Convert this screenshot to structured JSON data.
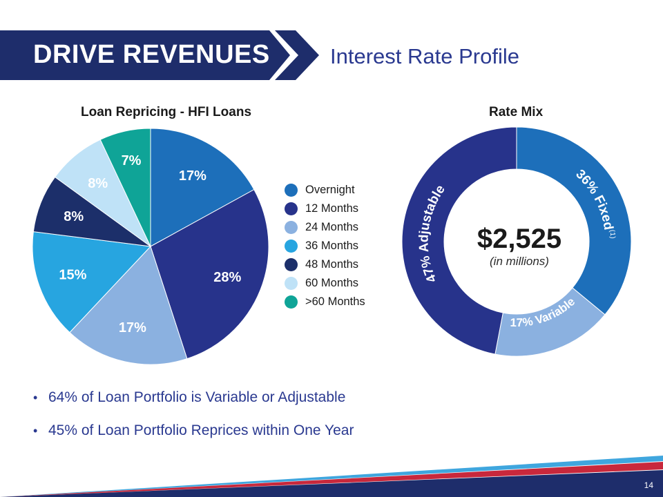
{
  "header": {
    "title": "DRIVE REVENUES",
    "subtitle": "Interest Rate Profile"
  },
  "colors": {
    "banner_dark": "#1e2d6b",
    "accent_blue": "#2a3990",
    "stripe_red": "#c8283c",
    "stripe_light_blue": "#3fa6de"
  },
  "chart_data": [
    {
      "type": "pie",
      "title": "Loan Repricing - HFI Loans",
      "categories": [
        "Overnight",
        "12 Months",
        "24 Months",
        "36 Months",
        "48 Months",
        "60 Months",
        ">60 Months"
      ],
      "values": [
        17,
        28,
        17,
        15,
        8,
        8,
        7
      ],
      "labels": [
        "17%",
        "28%",
        "17%",
        "15%",
        "8%",
        "8%",
        "7%"
      ],
      "colors": [
        "#1d6fba",
        "#27338b",
        "#8bb1e0",
        "#27a5e0",
        "#1c2f6a",
        "#bfe2f7",
        "#0fa497"
      ],
      "legend": "right"
    },
    {
      "type": "pie",
      "title": "Rate Mix",
      "donut": true,
      "categories": [
        "Fixed",
        "Variable",
        "Adjustable"
      ],
      "values": [
        36,
        17,
        47
      ],
      "labels": [
        "36% Fixed",
        "17% Variable",
        "47% Adjustable"
      ],
      "footnote_mark": "(1)",
      "colors": [
        "#1d6fba",
        "#8bb1e0",
        "#27338b"
      ],
      "center_value": "$2,525",
      "center_unit": "(in millions)"
    }
  ],
  "bullets": [
    "64% of Loan Portfolio is Variable or Adjustable",
    "45% of Loan Portfolio Reprices within One Year"
  ],
  "bullet_mark": "•",
  "page_number": "14"
}
